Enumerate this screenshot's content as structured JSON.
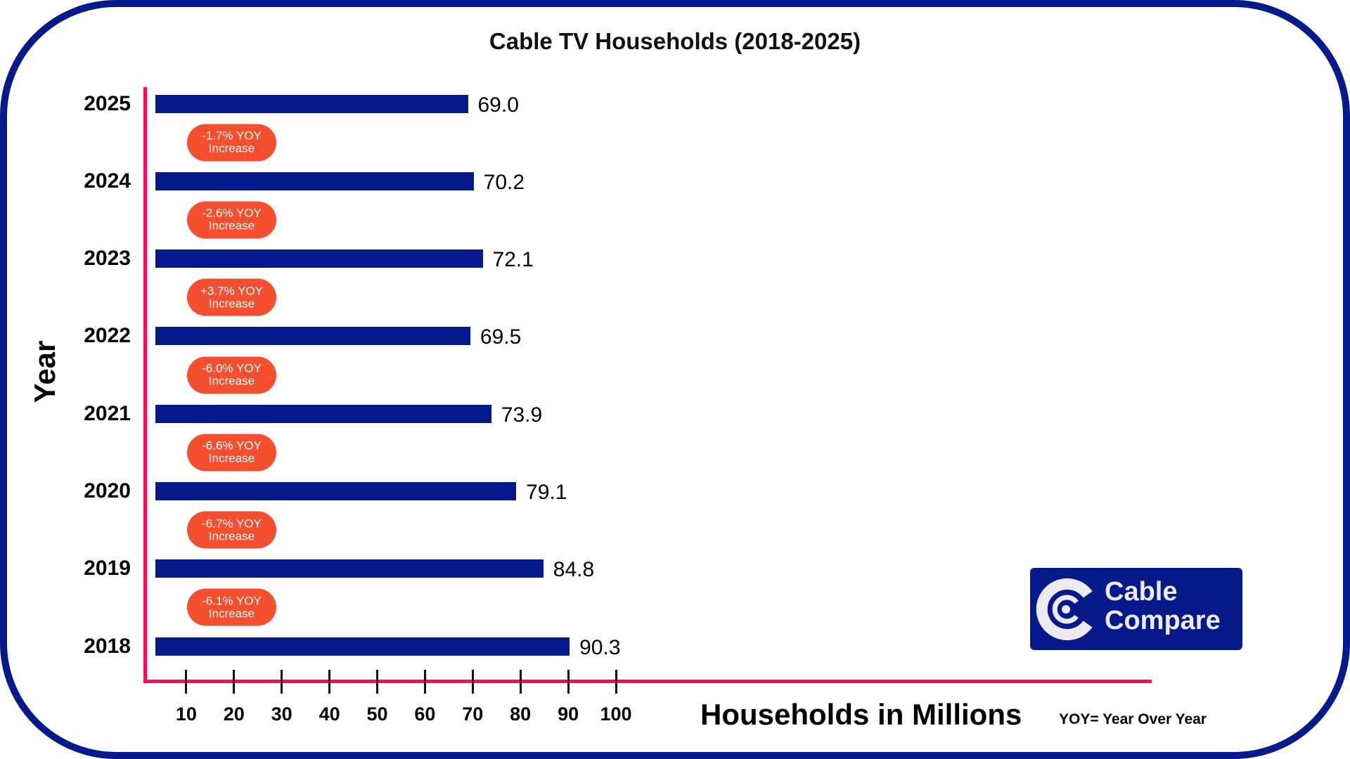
{
  "chart_data": {
    "type": "bar",
    "orientation": "horizontal",
    "title": "Cable TV Households (2018-2025)",
    "xlabel": "Households in Millions",
    "ylabel": "Year",
    "categories": [
      "2025",
      "2024",
      "2023",
      "2022",
      "2021",
      "2020",
      "2019",
      "2018"
    ],
    "values": [
      69.0,
      70.2,
      72.1,
      69.5,
      73.9,
      79.1,
      84.8,
      90.3
    ],
    "value_labels": [
      "69.0",
      "70.2",
      "72.1",
      "69.5",
      "73.9",
      "79.1",
      "84.8",
      "90.3"
    ],
    "xticks": [
      "10",
      "20",
      "30",
      "40",
      "50",
      "60",
      "70",
      "80",
      "90",
      "100"
    ],
    "xlim": [
      0,
      100
    ],
    "grid": false,
    "annotations": [
      {
        "line1": "-1.7% YOY",
        "line2": "Increase"
      },
      {
        "line1": "-2.6% YOY",
        "line2": "Increase"
      },
      {
        "line1": "+3.7% YOY",
        "line2": "Increase"
      },
      {
        "line1": "-6.0% YOY",
        "line2": "Increase"
      },
      {
        "line1": "-6.6% YOY",
        "line2": "Increase"
      },
      {
        "line1": "-6.7% YOY",
        "line2": "Increase"
      },
      {
        "line1": "-6.1% YOY",
        "line2": "Increase"
      }
    ],
    "note": "YOY= Year Over Year",
    "colors": {
      "bar": "#061a8c",
      "axis": "#ff0a50",
      "badge": "#f4502f",
      "frame": "#061a8c"
    }
  },
  "logo": {
    "line1": "Cable",
    "line2": "Compare"
  }
}
